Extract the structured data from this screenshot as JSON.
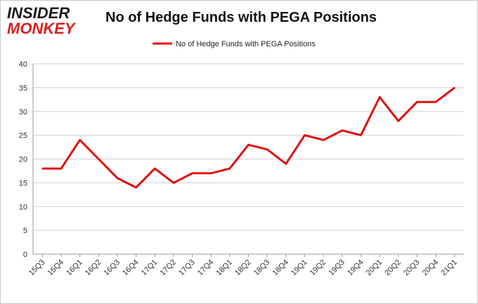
{
  "logo": {
    "line1": "INSIDER",
    "line2": "MONKEY"
  },
  "chart_data": {
    "type": "line",
    "title": "No of Hedge Funds with PEGA Positions",
    "categories": [
      "15Q3",
      "15Q4",
      "16Q1",
      "16Q2",
      "16Q3",
      "16Q4",
      "17Q1",
      "17Q2",
      "17Q3",
      "17Q4",
      "18Q1",
      "18Q2",
      "18Q3",
      "18Q4",
      "19Q1",
      "19Q2",
      "19Q3",
      "19Q4",
      "20Q1",
      "20Q2",
      "20Q3",
      "20Q4",
      "21Q1"
    ],
    "series": [
      {
        "name": "No of Hedge Funds with PEGA Positions",
        "color": "#e01010",
        "values": [
          18,
          18,
          24,
          20,
          16,
          14,
          18,
          15,
          17,
          17,
          18,
          23,
          22,
          19,
          25,
          24,
          26,
          25,
          33,
          28,
          32,
          32,
          35
        ]
      }
    ],
    "ylim": [
      0,
      40
    ],
    "yticks": [
      0,
      5,
      10,
      15,
      20,
      25,
      30,
      35,
      40
    ],
    "grid": true,
    "legend_position": "top-center",
    "xlabel": "",
    "ylabel": ""
  }
}
